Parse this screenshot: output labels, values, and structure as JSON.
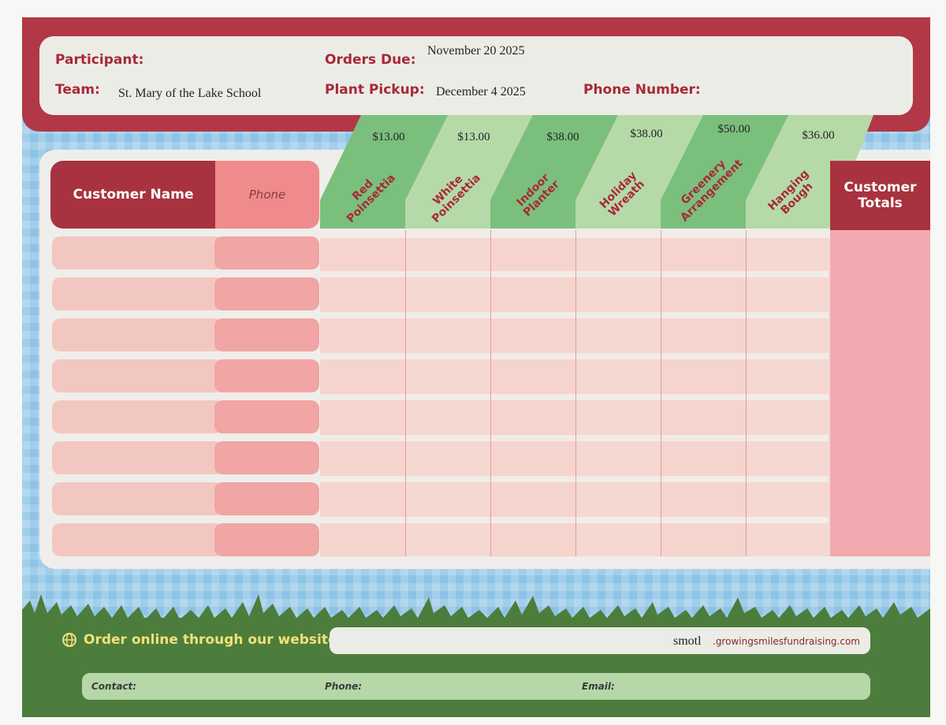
{
  "header": {
    "participant_label": "Participant:",
    "team_label": "Team:",
    "team_value": "St. Mary of the Lake School",
    "orders_due_label": "Orders Due:",
    "orders_due_value": "November 20 2025",
    "plant_pickup_label": "Plant Pickup:",
    "plant_pickup_value": "December 4 2025",
    "phone_number_label": "Phone Number:"
  },
  "table": {
    "customer_name_label": "Customer Name",
    "phone_label": "Phone",
    "totals_label": "Customer Totals",
    "products": [
      {
        "name": "Red Poinsettia",
        "price": "$13.00"
      },
      {
        "name": "White Poinsettia",
        "price": "$13.00"
      },
      {
        "name": "Indoor Planter",
        "price": "$38.00"
      },
      {
        "name": "Holiday Wreath",
        "price": "$38.00"
      },
      {
        "name": "Greenery Arrangement",
        "price": "$50.00"
      },
      {
        "name": "Hanging Bough",
        "price": "$36.00"
      }
    ],
    "row_count": 8
  },
  "footer": {
    "website_label": "Order online through our website:",
    "website_handwritten": "smotl",
    "website_domain": ".growingsmilesfundraising.com",
    "contact_label": "Contact:",
    "phone_label": "Phone:",
    "email_label": "Email:"
  },
  "colors": {
    "brand_red": "#b23848",
    "accent_green": "#4c7d3c",
    "sky_blue": "#8dc3e6"
  }
}
